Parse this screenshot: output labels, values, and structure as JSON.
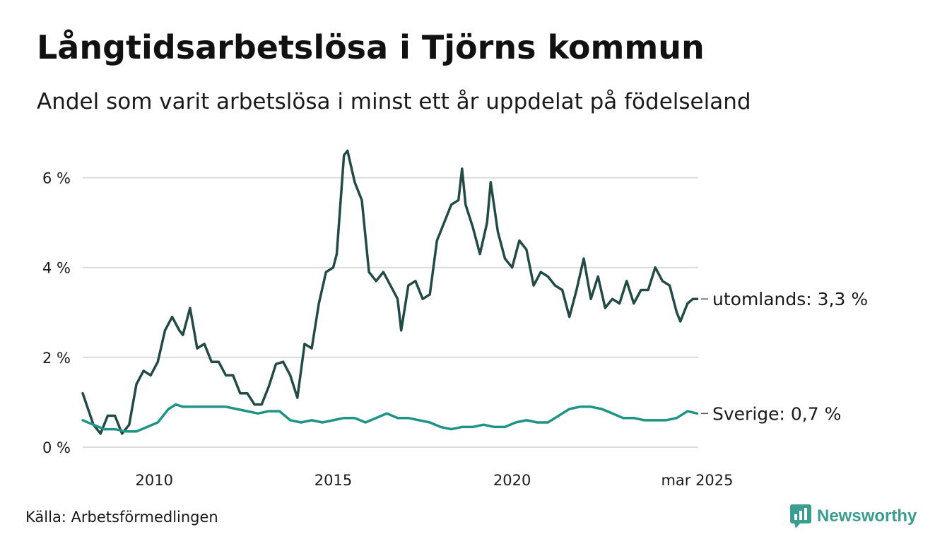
{
  "title": "Långtidsarbetslösa i Tjörns kommun",
  "subtitle": "Andel som varit arbetslösa i minst ett år uppdelat på födelseland",
  "source": "Källa: Arbetsförmedlingen",
  "brand": {
    "name": "Newsworthy",
    "icon": "newsworthy-logo-icon",
    "color": "#3a9d8f"
  },
  "chart_data": {
    "type": "line",
    "ylim": [
      0,
      7
    ],
    "xlim": [
      2008.0,
      2025.2
    ],
    "y_ticks": [
      0,
      2,
      4,
      6
    ],
    "y_tick_labels": [
      "0 %",
      "2 %",
      "4 %",
      "6 %"
    ],
    "x_ticks": [
      2010,
      2015,
      2020,
      2025.17
    ],
    "x_tick_labels": [
      "2010",
      "2015",
      "2020",
      "mar 2025"
    ],
    "grid": "horizontal",
    "series": [
      {
        "name": "utomlands",
        "color": "#234a46",
        "label": "utomlands: 3,3 %",
        "points": [
          [
            2008.0,
            1.2
          ],
          [
            2008.3,
            0.5
          ],
          [
            2008.5,
            0.3
          ],
          [
            2008.7,
            0.7
          ],
          [
            2008.9,
            0.7
          ],
          [
            2009.1,
            0.3
          ],
          [
            2009.3,
            0.5
          ],
          [
            2009.5,
            1.4
          ],
          [
            2009.7,
            1.7
          ],
          [
            2009.9,
            1.6
          ],
          [
            2010.1,
            1.9
          ],
          [
            2010.3,
            2.6
          ],
          [
            2010.5,
            2.9
          ],
          [
            2010.7,
            2.6
          ],
          [
            2010.8,
            2.5
          ],
          [
            2011.0,
            3.1
          ],
          [
            2011.2,
            2.2
          ],
          [
            2011.4,
            2.3
          ],
          [
            2011.6,
            1.9
          ],
          [
            2011.8,
            1.9
          ],
          [
            2012.0,
            1.6
          ],
          [
            2012.2,
            1.6
          ],
          [
            2012.4,
            1.2
          ],
          [
            2012.6,
            1.2
          ],
          [
            2012.8,
            0.95
          ],
          [
            2013.0,
            0.95
          ],
          [
            2013.2,
            1.35
          ],
          [
            2013.4,
            1.85
          ],
          [
            2013.6,
            1.9
          ],
          [
            2013.8,
            1.6
          ],
          [
            2014.0,
            1.1
          ],
          [
            2014.2,
            2.3
          ],
          [
            2014.4,
            2.2
          ],
          [
            2014.6,
            3.2
          ],
          [
            2014.8,
            3.9
          ],
          [
            2015.0,
            4.0
          ],
          [
            2015.1,
            4.3
          ],
          [
            2015.3,
            6.5
          ],
          [
            2015.4,
            6.6
          ],
          [
            2015.6,
            5.9
          ],
          [
            2015.8,
            5.5
          ],
          [
            2016.0,
            3.9
          ],
          [
            2016.2,
            3.7
          ],
          [
            2016.4,
            3.9
          ],
          [
            2016.6,
            3.6
          ],
          [
            2016.8,
            3.3
          ],
          [
            2016.9,
            2.6
          ],
          [
            2017.1,
            3.6
          ],
          [
            2017.3,
            3.7
          ],
          [
            2017.5,
            3.3
          ],
          [
            2017.7,
            3.4
          ],
          [
            2017.9,
            4.6
          ],
          [
            2018.1,
            5.0
          ],
          [
            2018.3,
            5.4
          ],
          [
            2018.5,
            5.5
          ],
          [
            2018.6,
            6.2
          ],
          [
            2018.7,
            5.4
          ],
          [
            2018.9,
            4.9
          ],
          [
            2019.1,
            4.3
          ],
          [
            2019.3,
            5.0
          ],
          [
            2019.4,
            5.9
          ],
          [
            2019.6,
            4.8
          ],
          [
            2019.8,
            4.2
          ],
          [
            2020.0,
            4.0
          ],
          [
            2020.2,
            4.6
          ],
          [
            2020.4,
            4.4
          ],
          [
            2020.6,
            3.6
          ],
          [
            2020.8,
            3.9
          ],
          [
            2021.0,
            3.8
          ],
          [
            2021.2,
            3.6
          ],
          [
            2021.4,
            3.5
          ],
          [
            2021.6,
            2.9
          ],
          [
            2021.8,
            3.5
          ],
          [
            2022.0,
            4.2
          ],
          [
            2022.2,
            3.3
          ],
          [
            2022.4,
            3.8
          ],
          [
            2022.6,
            3.1
          ],
          [
            2022.8,
            3.3
          ],
          [
            2023.0,
            3.2
          ],
          [
            2023.2,
            3.7
          ],
          [
            2023.4,
            3.2
          ],
          [
            2023.6,
            3.5
          ],
          [
            2023.8,
            3.5
          ],
          [
            2024.0,
            4.0
          ],
          [
            2024.2,
            3.7
          ],
          [
            2024.4,
            3.6
          ],
          [
            2024.6,
            3.0
          ],
          [
            2024.7,
            2.8
          ],
          [
            2024.9,
            3.2
          ],
          [
            2025.05,
            3.3
          ],
          [
            2025.17,
            3.3
          ]
        ]
      },
      {
        "name": "Sverige",
        "color": "#1f9384",
        "label": "Sverige: 0,7 %",
        "points": [
          [
            2008.0,
            0.6
          ],
          [
            2008.3,
            0.5
          ],
          [
            2008.6,
            0.4
          ],
          [
            2008.9,
            0.4
          ],
          [
            2009.2,
            0.35
          ],
          [
            2009.5,
            0.35
          ],
          [
            2009.8,
            0.45
          ],
          [
            2010.1,
            0.55
          ],
          [
            2010.4,
            0.85
          ],
          [
            2010.6,
            0.95
          ],
          [
            2010.8,
            0.9
          ],
          [
            2011.1,
            0.9
          ],
          [
            2011.4,
            0.9
          ],
          [
            2011.7,
            0.9
          ],
          [
            2012.0,
            0.9
          ],
          [
            2012.3,
            0.85
          ],
          [
            2012.6,
            0.8
          ],
          [
            2012.9,
            0.75
          ],
          [
            2013.2,
            0.8
          ],
          [
            2013.5,
            0.8
          ],
          [
            2013.8,
            0.6
          ],
          [
            2014.1,
            0.55
          ],
          [
            2014.4,
            0.6
          ],
          [
            2014.7,
            0.55
          ],
          [
            2015.0,
            0.6
          ],
          [
            2015.3,
            0.65
          ],
          [
            2015.6,
            0.65
          ],
          [
            2015.9,
            0.55
          ],
          [
            2016.2,
            0.65
          ],
          [
            2016.5,
            0.75
          ],
          [
            2016.8,
            0.65
          ],
          [
            2017.1,
            0.65
          ],
          [
            2017.4,
            0.6
          ],
          [
            2017.7,
            0.55
          ],
          [
            2018.0,
            0.45
          ],
          [
            2018.3,
            0.4
          ],
          [
            2018.6,
            0.45
          ],
          [
            2018.9,
            0.45
          ],
          [
            2019.2,
            0.5
          ],
          [
            2019.5,
            0.45
          ],
          [
            2019.8,
            0.45
          ],
          [
            2020.1,
            0.55
          ],
          [
            2020.4,
            0.6
          ],
          [
            2020.7,
            0.55
          ],
          [
            2021.0,
            0.55
          ],
          [
            2021.3,
            0.7
          ],
          [
            2021.6,
            0.85
          ],
          [
            2021.9,
            0.9
          ],
          [
            2022.2,
            0.9
          ],
          [
            2022.5,
            0.85
          ],
          [
            2022.8,
            0.75
          ],
          [
            2023.1,
            0.65
          ],
          [
            2023.4,
            0.65
          ],
          [
            2023.7,
            0.6
          ],
          [
            2024.0,
            0.6
          ],
          [
            2024.3,
            0.6
          ],
          [
            2024.6,
            0.65
          ],
          [
            2024.9,
            0.8
          ],
          [
            2025.17,
            0.75
          ]
        ]
      }
    ]
  }
}
